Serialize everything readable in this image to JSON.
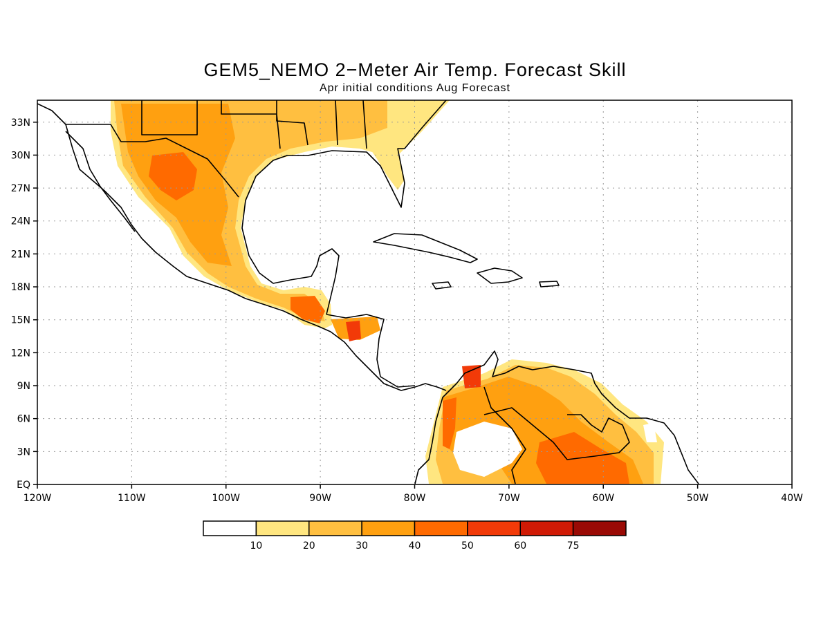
{
  "title": "GEM5_NEMO 2−Meter Air Temp. Forecast Skill",
  "subtitle": "Apr initial conditions   Aug Forecast",
  "map": {
    "lon_range": [
      -120,
      -40
    ],
    "lat_range": [
      0,
      35
    ],
    "grid": "dotted",
    "lon_ticks": [
      {
        "value": -120,
        "label": "120W"
      },
      {
        "value": -110,
        "label": "110W"
      },
      {
        "value": -100,
        "label": "100W"
      },
      {
        "value": -90,
        "label": "90W"
      },
      {
        "value": -80,
        "label": "80W"
      },
      {
        "value": -70,
        "label": "70W"
      },
      {
        "value": -60,
        "label": "60W"
      },
      {
        "value": -50,
        "label": "50W"
      },
      {
        "value": -40,
        "label": "40W"
      }
    ],
    "lat_ticks": [
      {
        "value": 0,
        "label": "EQ"
      },
      {
        "value": 3,
        "label": "3N"
      },
      {
        "value": 6,
        "label": "6N"
      },
      {
        "value": 9,
        "label": "9N"
      },
      {
        "value": 12,
        "label": "12N"
      },
      {
        "value": 15,
        "label": "15N"
      },
      {
        "value": 18,
        "label": "18N"
      },
      {
        "value": 21,
        "label": "21N"
      },
      {
        "value": 24,
        "label": "24N"
      },
      {
        "value": 27,
        "label": "27N"
      },
      {
        "value": 30,
        "label": "30N"
      },
      {
        "value": 33,
        "label": "33N"
      }
    ]
  },
  "colorbar": {
    "bins": [
      {
        "color": "#ffffff"
      },
      {
        "color": "#ffe680"
      },
      {
        "color": "#ffbf40"
      },
      {
        "color": "#ffa010"
      },
      {
        "color": "#ff6a00"
      },
      {
        "color": "#f23a08"
      },
      {
        "color": "#d01a05"
      },
      {
        "color": "#9a0a05"
      }
    ],
    "labels": [
      "10",
      "20",
      "30",
      "40",
      "50",
      "60",
      "75"
    ]
  }
}
